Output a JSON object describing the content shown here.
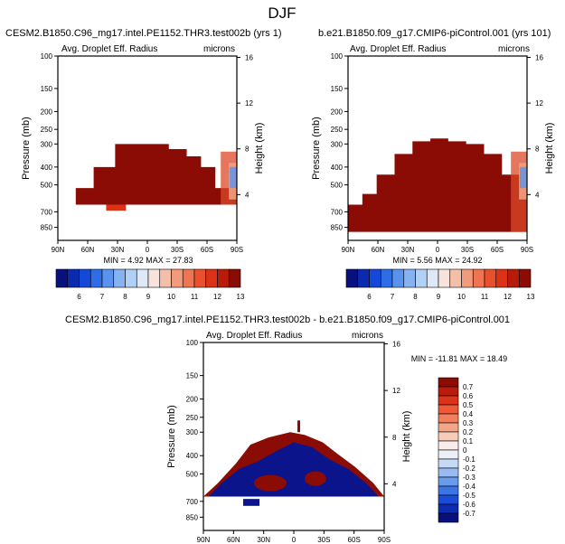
{
  "chart_data": {
    "type": "heatmap",
    "title": "DJF",
    "panels": [
      {
        "id": "top-left",
        "left_title": "CESM2.B1850.C96_mg17.intel.PE1152.THR3.test002b (yrs 1)",
        "subtitle": "Avg. Droplet Eff. Radius",
        "units": "microns",
        "ylabel": "Pressure (mb)",
        "ylabel_right": "Height (km)",
        "y_ticks": [
          "100",
          "150",
          "200",
          "250",
          "300",
          "400",
          "500",
          "700",
          "850"
        ],
        "y_right_ticks": [
          "16",
          "12",
          "8",
          "4"
        ],
        "x_ticks": [
          "90N",
          "60N",
          "30N",
          "0",
          "30S",
          "60S",
          "90S"
        ],
        "stats": "MIN =   4.92   MAX =  27.83",
        "min": 4.92,
        "max": 27.83
      },
      {
        "id": "top-right",
        "left_title": "b.e21.B1850.f09_g17.CMIP6-piControl.001 (yrs 101)",
        "subtitle": "Avg. Droplet Eff. Radius",
        "units": "microns",
        "ylabel": "Pressure (mb)",
        "ylabel_right": "Height (km)",
        "y_ticks": [
          "100",
          "150",
          "200",
          "250",
          "300",
          "400",
          "500",
          "700",
          "850"
        ],
        "y_right_ticks": [
          "16",
          "12",
          "8",
          "4"
        ],
        "x_ticks": [
          "90N",
          "60N",
          "30N",
          "0",
          "30S",
          "60S",
          "90S"
        ],
        "stats": "MIN =   5.56   MAX =  24.92",
        "min": 5.56,
        "max": 24.92
      },
      {
        "id": "bottom-diff",
        "left_title": "CESM2.B1850.C96_mg17.intel.PE1152.THR3.test002b - b.e21.B1850.f09_g17.CMIP6-piControl.001",
        "subtitle": "Avg. Droplet Eff. Radius",
        "units": "microns",
        "ylabel": "Pressure (mb)",
        "ylabel_right": "Height (km)",
        "y_ticks": [
          "100",
          "150",
          "200",
          "250",
          "300",
          "400",
          "500",
          "700",
          "850"
        ],
        "y_right_ticks": [
          "16",
          "12",
          "8",
          "4"
        ],
        "x_ticks": [
          "90N",
          "60N",
          "30N",
          "0",
          "30S",
          "60S",
          "90S"
        ],
        "stats": "MIN = -11.81   MAX =  18.49",
        "min": -11.81,
        "max": 18.49
      }
    ],
    "colorbar_top": {
      "labels": [
        "6",
        "7",
        "8",
        "9",
        "10",
        "11",
        "12",
        "13"
      ],
      "colors": [
        "#08107e",
        "#0a2bb0",
        "#1348d8",
        "#2f6de6",
        "#5a93ee",
        "#86b2f2",
        "#b2cff6",
        "#dfe8f5",
        "#f7e3dc",
        "#f4bfa9",
        "#f19a7c",
        "#ee7452",
        "#e9502d",
        "#dc3217",
        "#b91b0b",
        "#8a0c04"
      ]
    },
    "colorbar_diff": {
      "labels": [
        "0.7",
        "0.6",
        "0.5",
        "0.4",
        "0.3",
        "0.2",
        "0.1",
        "0",
        "-0.1",
        "-0.2",
        "-0.3",
        "-0.4",
        "-0.5",
        "-0.6",
        "-0.7"
      ],
      "colors": [
        "#8a0c04",
        "#b91b0b",
        "#dc3217",
        "#ee5a38",
        "#f17e5c",
        "#f4a688",
        "#f7cdb9",
        "#fbecec",
        "#eef0f8",
        "#c8d9f5",
        "#98bbf2",
        "#6a9aec",
        "#3c74e4",
        "#1a4cd8",
        "#0b2bb0",
        "#08107e"
      ]
    }
  }
}
